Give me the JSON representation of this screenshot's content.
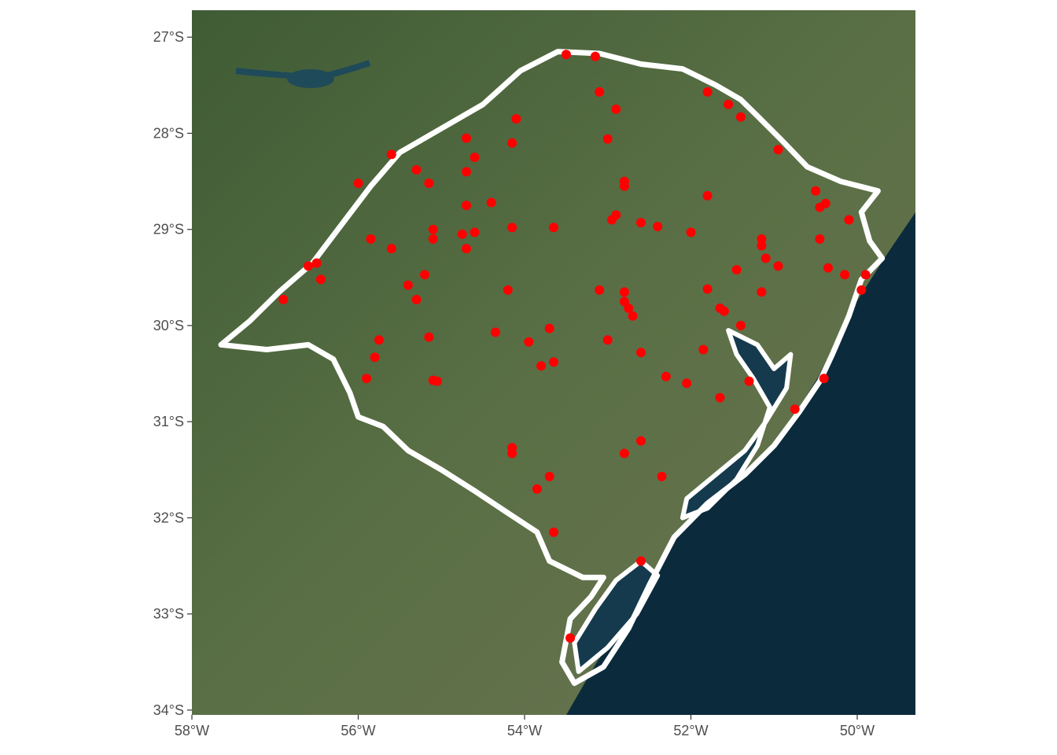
{
  "map": {
    "type": "scatter-map",
    "background": "satellite imagery",
    "xlim": [
      -58.0,
      -49.3
    ],
    "ylim": [
      -34.05,
      -26.72
    ],
    "colors": {
      "ocean": "#0b2a3c",
      "land": "#4f6a3c",
      "outline": "#ffffff",
      "station": "#ff0000",
      "axis_text": "#4d4d4d"
    },
    "x_ticks": [
      {
        "value": -58,
        "label": "58°W"
      },
      {
        "value": -56,
        "label": "56°W"
      },
      {
        "value": -54,
        "label": "54°W"
      },
      {
        "value": -52,
        "label": "52°W"
      },
      {
        "value": -50,
        "label": "50°W"
      }
    ],
    "y_ticks": [
      {
        "value": -27,
        "label": "27°S"
      },
      {
        "value": -28,
        "label": "28°S"
      },
      {
        "value": -29,
        "label": "29°S"
      },
      {
        "value": -30,
        "label": "30°S"
      },
      {
        "value": -31,
        "label": "31°S"
      },
      {
        "value": -32,
        "label": "32°S"
      },
      {
        "value": -33,
        "label": "33°S"
      },
      {
        "value": -34,
        "label": "34°S"
      }
    ],
    "state_outline": [
      [
        -53.6,
        -27.15
      ],
      [
        -53.1,
        -27.17
      ],
      [
        -52.6,
        -27.28
      ],
      [
        -52.1,
        -27.33
      ],
      [
        -51.7,
        -27.5
      ],
      [
        -51.4,
        -27.65
      ],
      [
        -51.2,
        -27.82
      ],
      [
        -50.9,
        -28.08
      ],
      [
        -50.6,
        -28.35
      ],
      [
        -50.2,
        -28.5
      ],
      [
        -49.75,
        -28.6
      ],
      [
        -49.95,
        -28.82
      ],
      [
        -49.85,
        -29.12
      ],
      [
        -49.7,
        -29.3
      ],
      [
        -49.95,
        -29.52
      ],
      [
        -50.1,
        -29.9
      ],
      [
        -50.3,
        -30.3
      ],
      [
        -50.45,
        -30.58
      ],
      [
        -50.7,
        -30.9
      ],
      [
        -51.0,
        -31.25
      ],
      [
        -51.35,
        -31.55
      ],
      [
        -51.8,
        -31.85
      ],
      [
        -52.2,
        -32.2
      ],
      [
        -52.5,
        -32.7
      ],
      [
        -52.75,
        -33.15
      ],
      [
        -53.05,
        -33.55
      ],
      [
        -53.4,
        -33.72
      ],
      [
        -53.55,
        -33.5
      ],
      [
        -53.45,
        -33.05
      ],
      [
        -53.2,
        -32.82
      ],
      [
        -53.05,
        -32.62
      ],
      [
        -53.3,
        -32.62
      ],
      [
        -53.7,
        -32.45
      ],
      [
        -53.85,
        -32.15
      ],
      [
        -54.2,
        -31.95
      ],
      [
        -54.6,
        -31.72
      ],
      [
        -55.0,
        -31.5
      ],
      [
        -55.4,
        -31.3
      ],
      [
        -55.7,
        -31.05
      ],
      [
        -56.0,
        -30.95
      ],
      [
        -56.1,
        -30.7
      ],
      [
        -56.3,
        -30.35
      ],
      [
        -56.6,
        -30.2
      ],
      [
        -57.1,
        -30.25
      ],
      [
        -57.65,
        -30.2
      ],
      [
        -57.3,
        -29.95
      ],
      [
        -56.95,
        -29.65
      ],
      [
        -56.55,
        -29.35
      ],
      [
        -56.2,
        -28.95
      ],
      [
        -55.85,
        -28.55
      ],
      [
        -55.5,
        -28.2
      ],
      [
        -55.0,
        -27.95
      ],
      [
        -54.5,
        -27.7
      ],
      [
        -54.05,
        -27.35
      ],
      [
        -53.6,
        -27.15
      ]
    ],
    "lagoon_outline": [
      [
        -51.55,
        -30.05
      ],
      [
        -51.2,
        -30.2
      ],
      [
        -51.0,
        -30.45
      ],
      [
        -50.8,
        -30.3
      ],
      [
        -50.85,
        -30.65
      ],
      [
        -51.1,
        -31.0
      ],
      [
        -51.35,
        -31.3
      ],
      [
        -51.7,
        -31.55
      ],
      [
        -52.05,
        -31.8
      ],
      [
        -52.1,
        -32.0
      ],
      [
        -51.8,
        -31.9
      ],
      [
        -51.45,
        -31.6
      ],
      [
        -51.2,
        -31.25
      ],
      [
        -51.05,
        -30.85
      ],
      [
        -51.25,
        -30.55
      ],
      [
        -51.45,
        -30.3
      ],
      [
        -51.55,
        -30.05
      ]
    ],
    "lagoon2_outline": [
      [
        -52.6,
        -32.45
      ],
      [
        -52.4,
        -32.6
      ],
      [
        -52.65,
        -33.0
      ],
      [
        -53.0,
        -33.35
      ],
      [
        -53.35,
        -33.6
      ],
      [
        -53.4,
        -33.3
      ],
      [
        -53.15,
        -32.95
      ],
      [
        -52.9,
        -32.65
      ],
      [
        -52.6,
        -32.45
      ]
    ],
    "stations": [
      [
        -53.5,
        -27.18
      ],
      [
        -53.15,
        -27.2
      ],
      [
        -53.1,
        -27.57
      ],
      [
        -52.9,
        -27.75
      ],
      [
        -53.0,
        -28.06
      ],
      [
        -51.8,
        -27.57
      ],
      [
        -51.55,
        -27.7
      ],
      [
        -51.4,
        -27.83
      ],
      [
        -50.95,
        -28.17
      ],
      [
        -54.1,
        -27.85
      ],
      [
        -54.7,
        -28.05
      ],
      [
        -54.15,
        -28.1
      ],
      [
        -54.6,
        -28.25
      ],
      [
        -54.7,
        -28.4
      ],
      [
        -55.6,
        -28.22
      ],
      [
        -55.3,
        -28.38
      ],
      [
        -55.15,
        -28.52
      ],
      [
        -56.0,
        -28.52
      ],
      [
        -54.4,
        -28.72
      ],
      [
        -54.7,
        -28.75
      ],
      [
        -52.8,
        -28.5
      ],
      [
        -52.8,
        -28.55
      ],
      [
        -51.8,
        -28.65
      ],
      [
        -52.95,
        -28.9
      ],
      [
        -52.9,
        -28.85
      ],
      [
        -52.6,
        -28.93
      ],
      [
        -52.4,
        -28.97
      ],
      [
        -52.0,
        -29.03
      ],
      [
        -53.65,
        -28.98
      ],
      [
        -54.15,
        -28.98
      ],
      [
        -54.6,
        -29.03
      ],
      [
        -54.75,
        -29.05
      ],
      [
        -55.1,
        -29.0
      ],
      [
        -55.1,
        -29.1
      ],
      [
        -54.7,
        -29.2
      ],
      [
        -55.85,
        -29.1
      ],
      [
        -55.6,
        -29.2
      ],
      [
        -56.6,
        -29.38
      ],
      [
        -56.5,
        -29.35
      ],
      [
        -56.45,
        -29.52
      ],
      [
        -56.9,
        -29.73
      ],
      [
        -55.4,
        -29.58
      ],
      [
        -55.2,
        -29.47
      ],
      [
        -55.3,
        -29.73
      ],
      [
        -54.2,
        -29.63
      ],
      [
        -53.1,
        -29.63
      ],
      [
        -52.8,
        -29.65
      ],
      [
        -52.8,
        -29.75
      ],
      [
        -52.75,
        -29.82
      ],
      [
        -52.7,
        -29.9
      ],
      [
        -51.8,
        -29.62
      ],
      [
        -51.45,
        -29.42
      ],
      [
        -51.15,
        -29.65
      ],
      [
        -51.65,
        -29.82
      ],
      [
        -51.6,
        -29.85
      ],
      [
        -51.4,
        -30.0
      ],
      [
        -51.15,
        -29.1
      ],
      [
        -51.15,
        -29.17
      ],
      [
        -51.1,
        -29.3
      ],
      [
        -50.95,
        -29.38
      ],
      [
        -50.5,
        -28.6
      ],
      [
        -50.45,
        -28.77
      ],
      [
        -50.38,
        -28.73
      ],
      [
        -50.1,
        -28.9
      ],
      [
        -50.45,
        -29.1
      ],
      [
        -50.35,
        -29.4
      ],
      [
        -50.15,
        -29.47
      ],
      [
        -49.9,
        -29.47
      ],
      [
        -49.95,
        -29.63
      ],
      [
        -55.75,
        -30.15
      ],
      [
        -55.8,
        -30.33
      ],
      [
        -55.9,
        -30.55
      ],
      [
        -55.15,
        -30.12
      ],
      [
        -55.1,
        -30.57
      ],
      [
        -55.05,
        -30.58
      ],
      [
        -54.35,
        -30.07
      ],
      [
        -53.95,
        -30.17
      ],
      [
        -53.7,
        -30.03
      ],
      [
        -53.65,
        -30.38
      ],
      [
        -53.8,
        -30.42
      ],
      [
        -53.0,
        -30.15
      ],
      [
        -52.6,
        -30.28
      ],
      [
        -52.3,
        -30.53
      ],
      [
        -52.05,
        -30.6
      ],
      [
        -51.85,
        -30.25
      ],
      [
        -51.65,
        -30.75
      ],
      [
        -51.3,
        -30.58
      ],
      [
        -50.75,
        -30.87
      ],
      [
        -50.4,
        -30.55
      ],
      [
        -54.15,
        -31.27
      ],
      [
        -54.15,
        -31.33
      ],
      [
        -53.7,
        -31.57
      ],
      [
        -53.85,
        -31.7
      ],
      [
        -52.8,
        -31.33
      ],
      [
        -52.6,
        -31.2
      ],
      [
        -52.35,
        -31.57
      ],
      [
        -53.65,
        -32.15
      ],
      [
        -52.6,
        -32.45
      ],
      [
        -53.45,
        -33.25
      ]
    ]
  }
}
